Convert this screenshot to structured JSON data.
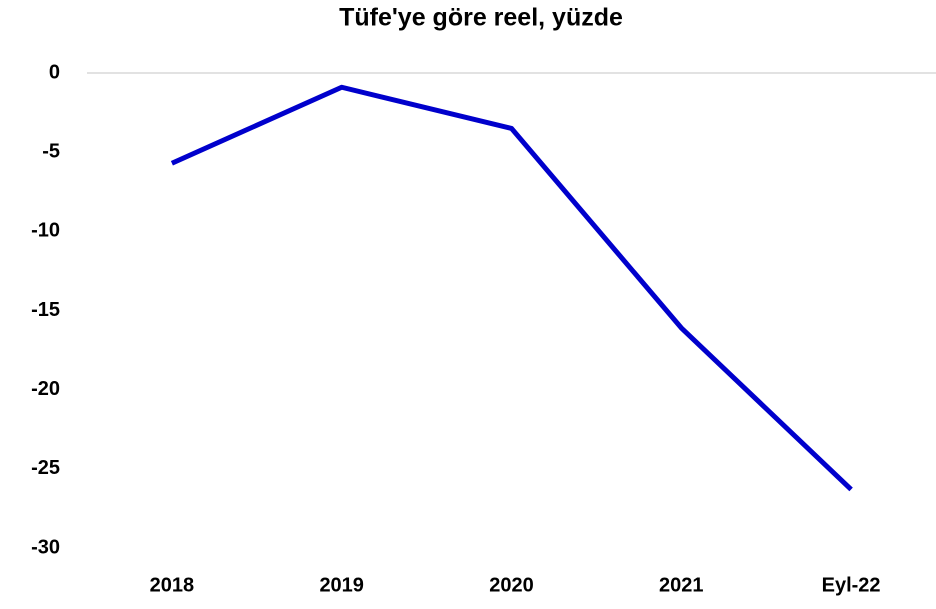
{
  "chart_data": {
    "type": "line",
    "title": "Tüfe'ye göre reel, yüzde",
    "categories": [
      "2018",
      "2019",
      "2020",
      "2021",
      "Eyl-22"
    ],
    "values": [
      -5.7,
      -0.9,
      -3.5,
      -16.1,
      -26.3
    ],
    "color": "#0000cc",
    "ylim": [
      -30,
      0
    ],
    "yticks": [
      0,
      -5,
      -10,
      -15,
      -20,
      -25,
      -30
    ],
    "grid": false
  }
}
